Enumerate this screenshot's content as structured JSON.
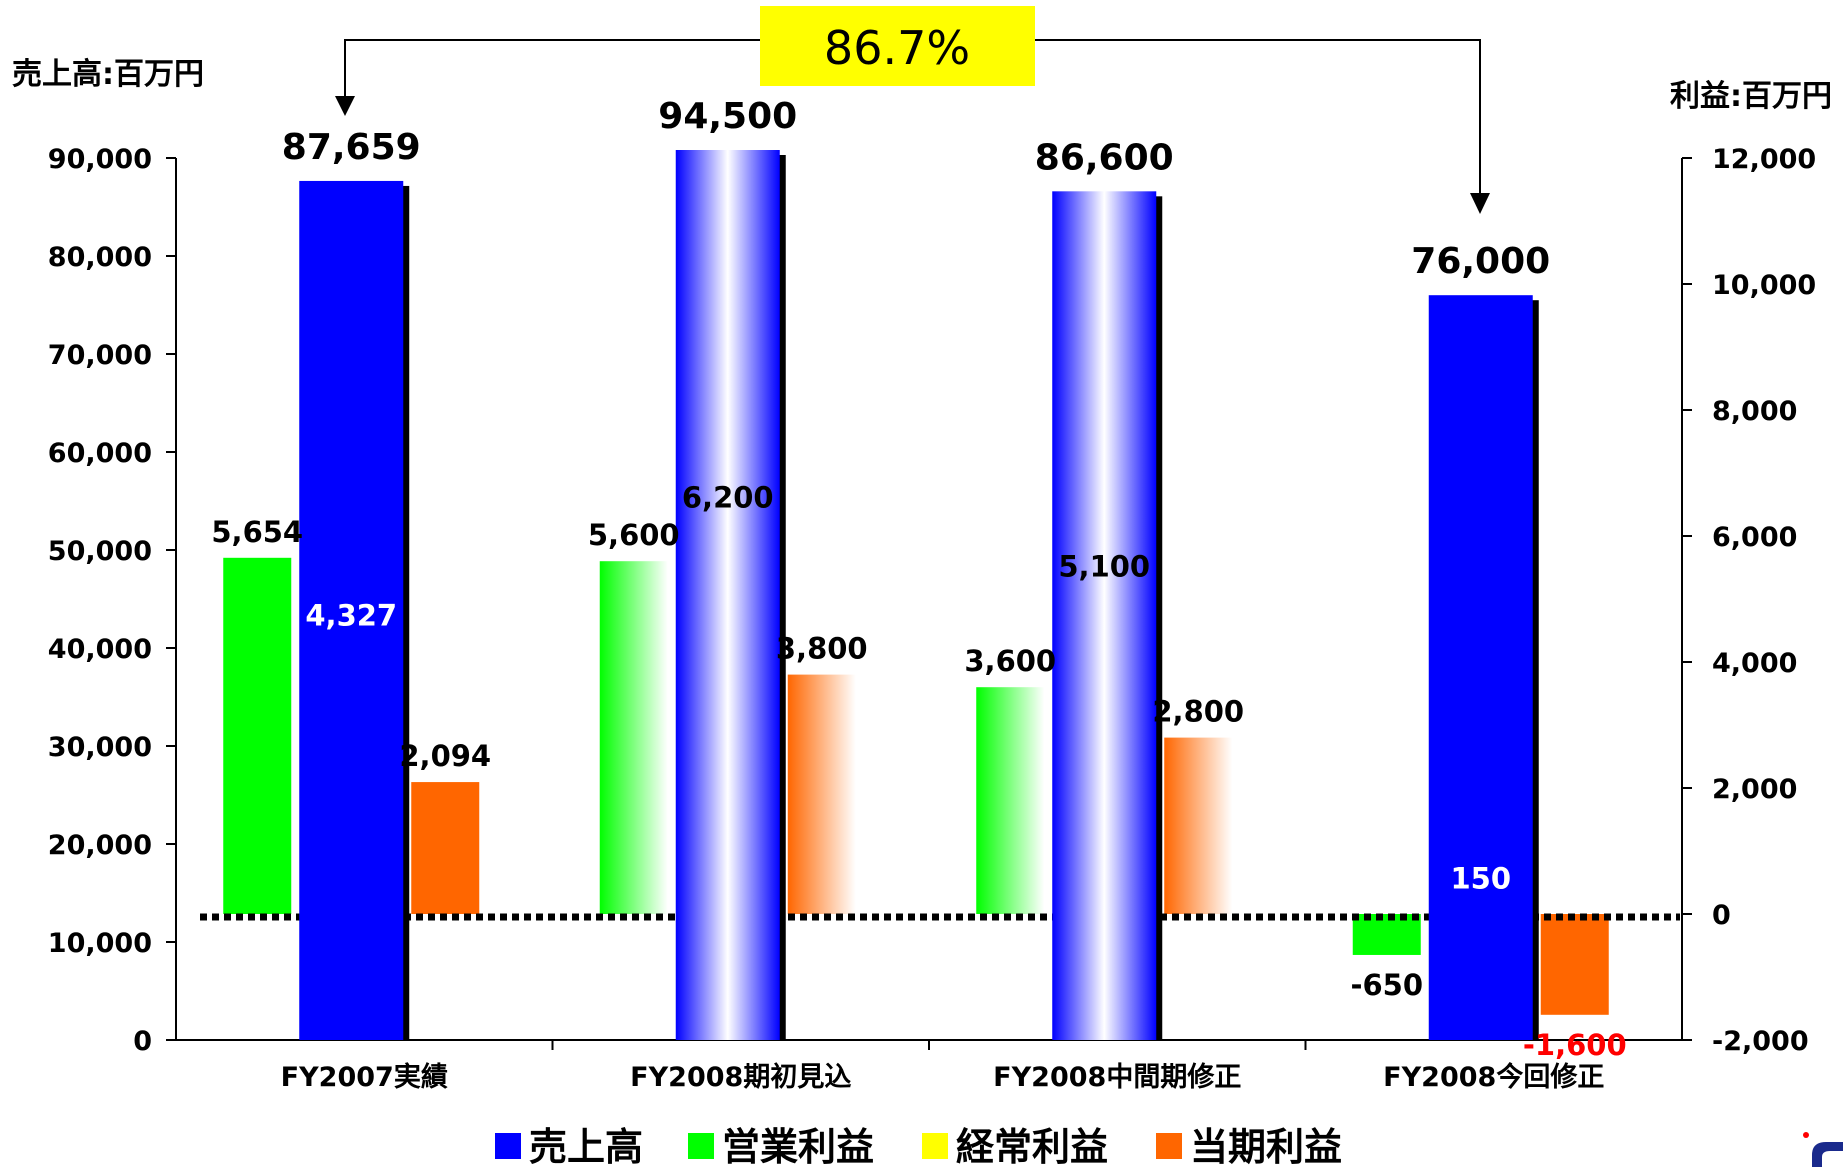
{
  "chart_data": {
    "type": "bar",
    "categories": [
      "FY2007実績",
      "FY2008期初見込",
      "FY2008中間期修正",
      "FY2008今回修正"
    ],
    "left_axis": {
      "unit_label": "売上高:百万円",
      "ylim": [
        0,
        90000
      ],
      "ticks": [
        "0",
        "10,000",
        "20,000",
        "30,000",
        "40,000",
        "50,000",
        "60,000",
        "70,000",
        "80,000",
        "90,000"
      ]
    },
    "right_axis": {
      "unit_label": "利益:百万円",
      "ylim": [
        -2000,
        12000
      ],
      "ticks": [
        "-2,000",
        "0",
        "2,000",
        "4,000",
        "6,000",
        "8,000",
        "10,000",
        "12,000"
      ]
    },
    "series": [
      {
        "name": "売上高",
        "axis": "left",
        "color": "#0000ff",
        "values": [
          87659,
          94500,
          86600,
          76000
        ],
        "labels": [
          "87,659",
          "94,500",
          "86,600",
          "76,000"
        ],
        "gradient": [
          false,
          true,
          true,
          false
        ]
      },
      {
        "name": "営業利益",
        "axis": "right",
        "color": "#00ff00",
        "values": [
          5654,
          5600,
          3600,
          -650
        ],
        "labels": [
          "5,654",
          "5,600",
          "3,600",
          "-650"
        ],
        "gradient": [
          false,
          true,
          true,
          false
        ]
      },
      {
        "name": "経常利益",
        "axis": "right",
        "color": "#ffff00",
        "values": [
          4327,
          6200,
          5100,
          150
        ],
        "labels": [
          "4,327",
          "6,200",
          "5,100",
          "150"
        ],
        "gradient": [
          false,
          true,
          true,
          false
        ]
      },
      {
        "name": "当期利益",
        "axis": "right",
        "color": "#ff6600",
        "values": [
          2094,
          3800,
          2800,
          -1600
        ],
        "labels": [
          "2,094",
          "3,800",
          "2,800",
          "-1,600"
        ],
        "gradient": [
          false,
          true,
          true,
          false
        ]
      }
    ],
    "annotation": {
      "text": "86.7%",
      "from_category": "FY2007実績",
      "to_category": "FY2008今回修正",
      "color": "#ffff00"
    },
    "legend": {
      "placement": "bottom",
      "entries": [
        "売上高",
        "営業利益",
        "経常利益",
        "当期利益"
      ]
    },
    "negative_label_color": "#ff0000",
    "zero_line_style": "dotted"
  }
}
